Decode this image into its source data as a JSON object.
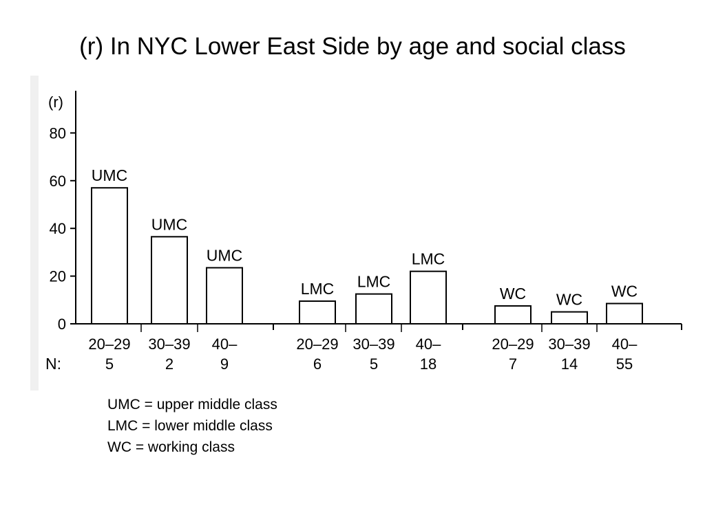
{
  "title": "(r) In NYC Lower East Side by age and social class",
  "chart_data": {
    "type": "bar",
    "ylabel": "(r)",
    "yticks": [
      0,
      20,
      40,
      60,
      80
    ],
    "ylim": [
      0,
      95
    ],
    "n_label": "N:",
    "grid": false,
    "legend": "below",
    "groups": [
      {
        "class": "UMC",
        "bars": [
          {
            "age": "20–29",
            "n": "5",
            "value": 57
          },
          {
            "age": "30–39",
            "n": "2",
            "value": 36.5
          },
          {
            "age": "40–",
            "n": "9",
            "value": 23.5
          }
        ]
      },
      {
        "class": "LMC",
        "bars": [
          {
            "age": "20–29",
            "n": "6",
            "value": 9.5
          },
          {
            "age": "30–39",
            "n": "5",
            "value": 12.5
          },
          {
            "age": "40–",
            "n": "18",
            "value": 22
          }
        ]
      },
      {
        "class": "WC",
        "bars": [
          {
            "age": "20–29",
            "n": "7",
            "value": 7.5
          },
          {
            "age": "30–39",
            "n": "14",
            "value": 5
          },
          {
            "age": "40–",
            "n": "55",
            "value": 8.5
          }
        ]
      }
    ]
  },
  "legend_items": [
    "UMC = upper middle class",
    "LMC = lower middle class",
    "WC = working class"
  ]
}
